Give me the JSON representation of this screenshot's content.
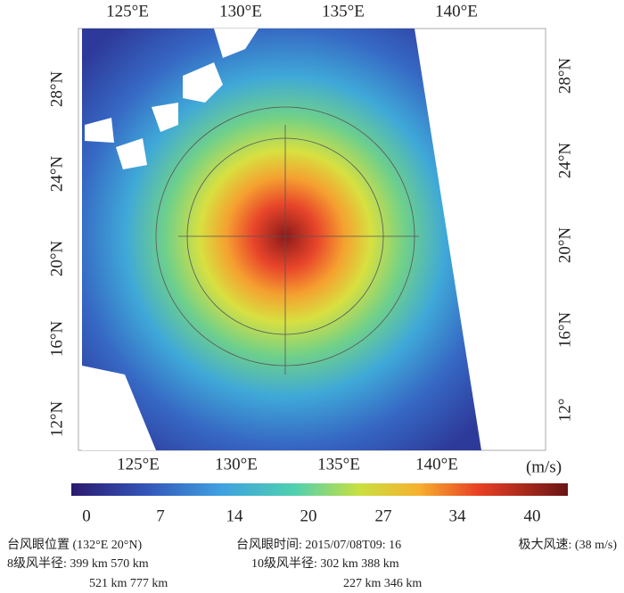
{
  "top_axis": [
    "125°E",
    "130°E",
    "135°E",
    "140°E"
  ],
  "bottom_axis": [
    "125°E",
    "130°E",
    "135°E",
    "140°E"
  ],
  "left_axis": [
    "28°N",
    "24°N",
    "20°N",
    "16°N",
    "12°N"
  ],
  "right_axis": [
    "28°N",
    "24°N",
    "20°N",
    "16°N",
    "12°"
  ],
  "colorbar": {
    "unit": "(m/s)",
    "ticks": [
      "0",
      "7",
      "14",
      "20",
      "27",
      "34",
      "40"
    ]
  },
  "info": {
    "eye_position": "台风眼位置 (132°E 20°N)",
    "eye_time": "台风眼时间: 2015/07/08T09: 16",
    "max_wind": "极大风速: (38 m/s)",
    "r8_line1": "8级风半径: 399 km 570 km",
    "r8_line2": "521 km 777 km",
    "r10_line1": "10级风半径: 302 km 388 km",
    "r10_line2": "227 km 346 km"
  }
}
